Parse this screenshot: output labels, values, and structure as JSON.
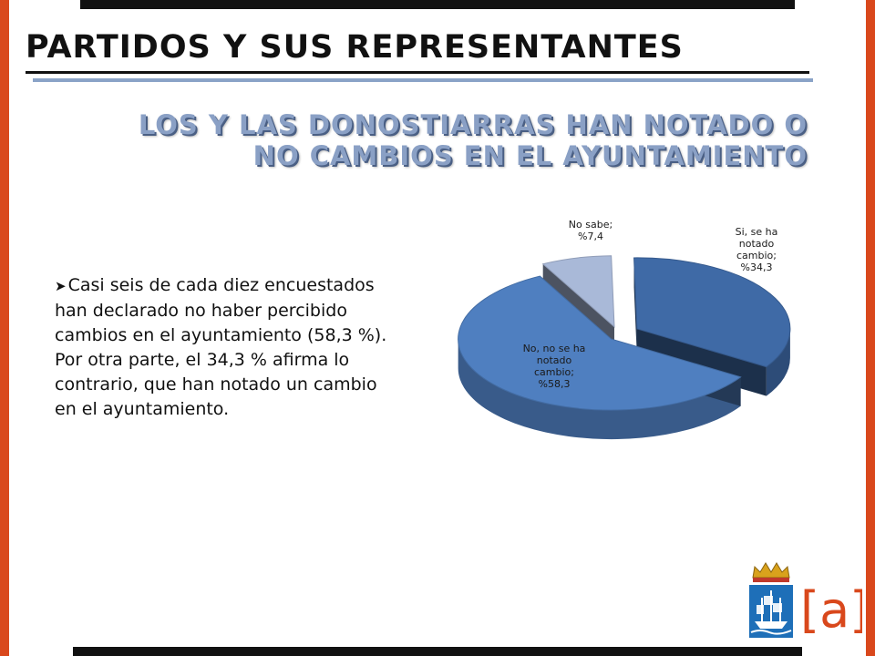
{
  "header": {
    "section_title": "PARTIDOS Y SUS REPRESENTANTES",
    "slide_title_line1": "LOS Y LAS DONOSTIARRAS HAN NOTADO O",
    "slide_title_line2": "NO CAMBIOS EN EL AYUNTAMIENTO"
  },
  "body": {
    "bullet_icon": "arrow-bullet-icon",
    "text": "Casi seis de cada diez encuestados han declarado no haber  percibido cambios en el ayuntamiento (58,3 %). Por otra parte, el 34,3 % afirma lo contrario, que han notado un cambio en el ayuntamiento."
  },
  "chart_data": {
    "type": "pie",
    "style": "3d-exploded",
    "slices": [
      {
        "label_lines": [
          "Si, se ha",
          "notado",
          "cambio;",
          "%34,3"
        ],
        "category": "Si, se ha notado cambio",
        "value": 34.3,
        "color": "#3f6aa6"
      },
      {
        "label_lines": [
          "No, no se ha",
          "notado",
          "cambio;",
          "%58,3"
        ],
        "category": "No, no se ha notado cambio",
        "value": 58.3,
        "color": "#4f7fc0"
      },
      {
        "label_lines": [
          "No sabe;",
          "%7,4"
        ],
        "category": "No sabe",
        "value": 7.4,
        "color": "#a9b9d8"
      }
    ]
  },
  "logo": {
    "mark": "[a]",
    "emblem_icon": "city-coat-of-arms-icon",
    "colors": {
      "mark": "#d9481c",
      "emblem_blue": "#1e6fb8"
    }
  },
  "colors": {
    "accent": "#d9481c",
    "title_blue": "#8aa0c5"
  }
}
